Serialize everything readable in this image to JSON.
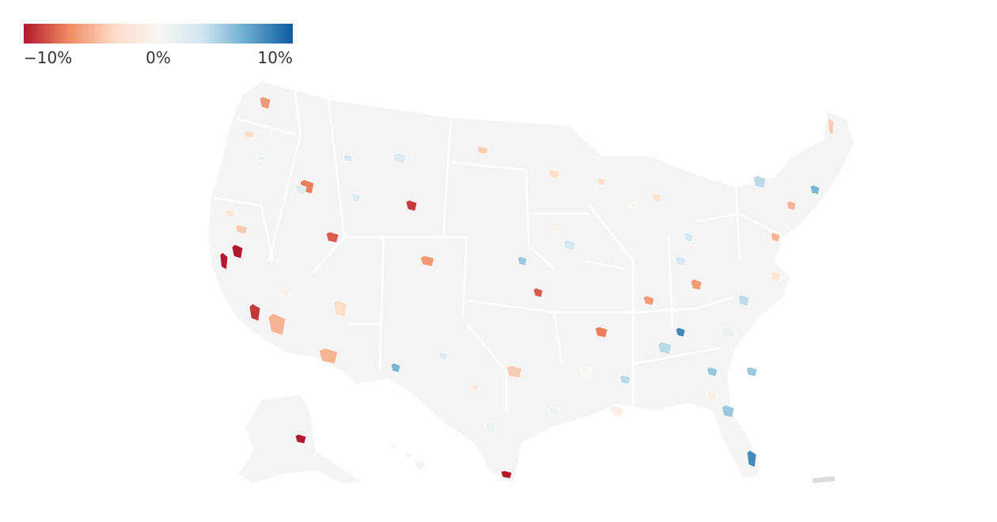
{
  "legend": {
    "ticks": [
      "−10%",
      "0%",
      "10%"
    ],
    "colors": [
      "#b2182b",
      "#ef8a62",
      "#fddbc7",
      "#f7f7f2",
      "#d1e5f0",
      "#67a9cf",
      "#0c5aa0"
    ]
  },
  "map": {
    "land_color": "#f4f4f4",
    "border_color": "#ffffff",
    "regions": [
      {
        "value": -12
      },
      {
        "value": -10
      },
      {
        "value": -9
      },
      {
        "value": -8
      },
      {
        "value": -7
      },
      {
        "value": -6
      },
      {
        "value": -6
      },
      {
        "value": -5
      },
      {
        "value": -5
      },
      {
        "value": -4
      },
      {
        "value": -4
      },
      {
        "value": -3
      },
      {
        "value": -3
      },
      {
        "value": -2
      },
      {
        "value": -2
      },
      {
        "value": -1
      },
      {
        "value": -1
      },
      {
        "value": 0
      },
      {
        "value": 1
      },
      {
        "value": 1
      },
      {
        "value": 2
      },
      {
        "value": 2
      },
      {
        "value": 3
      },
      {
        "value": 3
      },
      {
        "value": 4
      },
      {
        "value": 4
      },
      {
        "value": 5
      },
      {
        "value": 5
      },
      {
        "value": 6
      },
      {
        "value": 8
      }
    ]
  }
}
